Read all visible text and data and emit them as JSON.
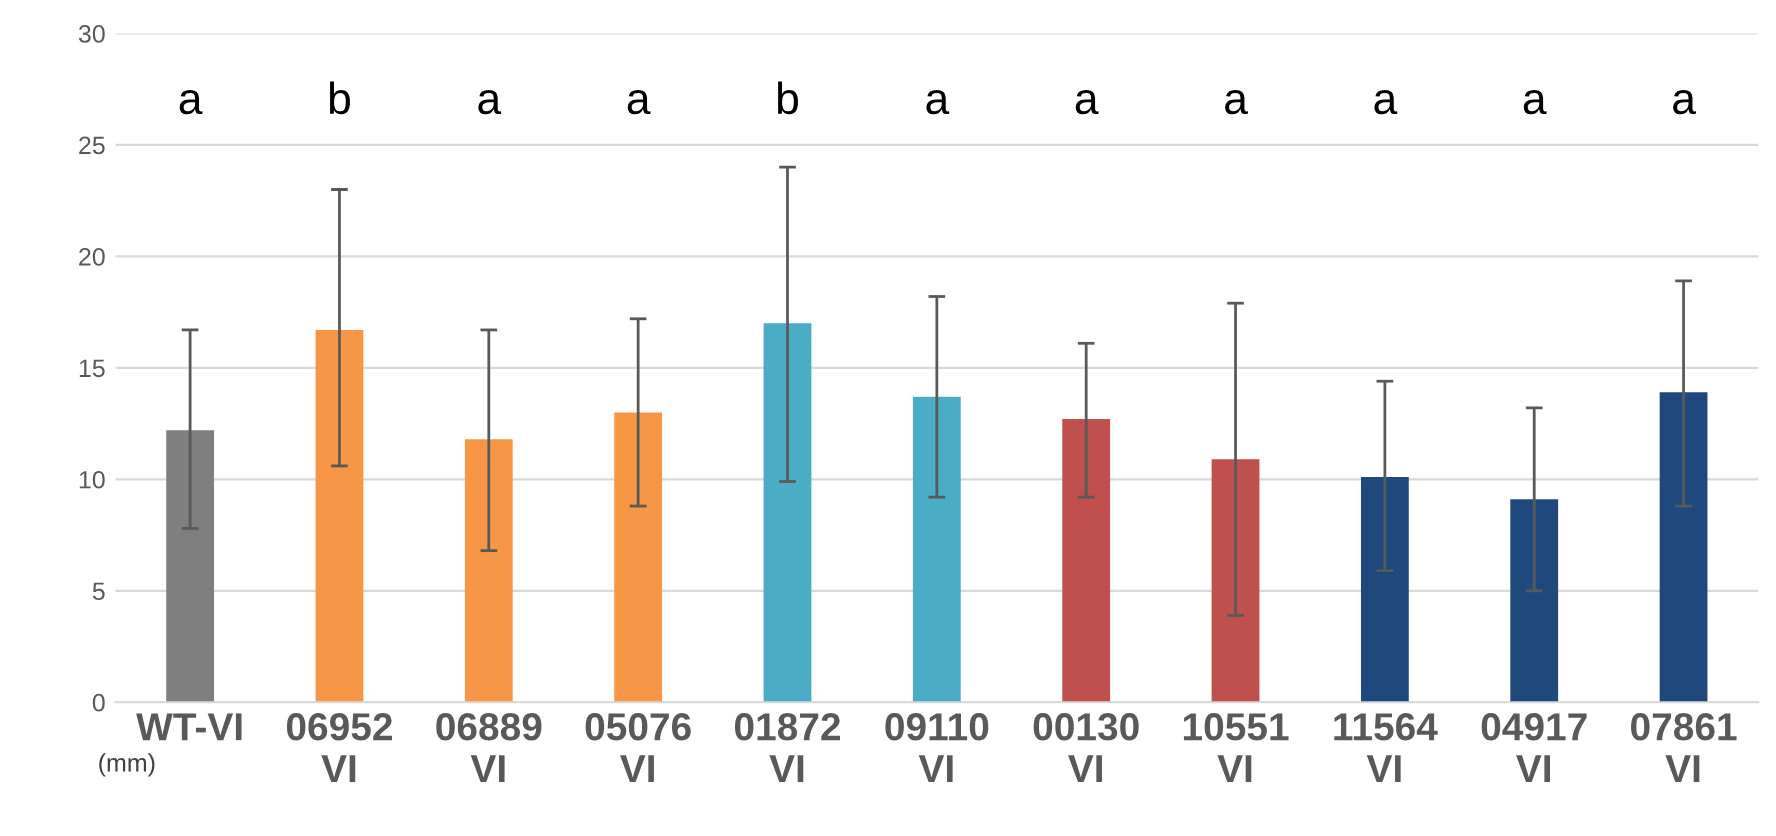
{
  "chart_data": {
    "type": "bar",
    "categories": [
      "WT-VI",
      "06952\nVI",
      "06889\nVI",
      "05076\nVI",
      "01872\nVI",
      "09110\nVI",
      "00130\nVI",
      "10551\nVI",
      "11564\nVI",
      "04917\nVI",
      "07861\nVI"
    ],
    "values": [
      12.2,
      16.7,
      11.8,
      13.0,
      17.0,
      13.7,
      12.7,
      10.9,
      10.1,
      9.1,
      13.9
    ],
    "colors": [
      "#7f7f7f",
      "#f79646",
      "#f79646",
      "#f79646",
      "#4bacc6",
      "#4bacc6",
      "#c0504d",
      "#c0504d",
      "#1f497d",
      "#1f497d",
      "#1f497d"
    ],
    "errors": [
      [
        7.8,
        16.7
      ],
      [
        10.6,
        23.0
      ],
      [
        6.8,
        16.7
      ],
      [
        8.8,
        17.2
      ],
      [
        9.9,
        24.0
      ],
      [
        9.2,
        18.2
      ],
      [
        9.2,
        16.1
      ],
      [
        3.9,
        17.9
      ],
      [
        5.9,
        14.4
      ],
      [
        5.0,
        13.2
      ],
      [
        8.8,
        18.9
      ]
    ],
    "ylim": [
      0,
      30
    ],
    "yticks": [
      0,
      5,
      10,
      15,
      20,
      25,
      30
    ],
    "grid": "y",
    "annotations": [
      "a",
      "b",
      "a",
      "a",
      "b",
      "a",
      "a",
      "a",
      "a",
      "a",
      "a",
      "(mm)"
    ]
  }
}
